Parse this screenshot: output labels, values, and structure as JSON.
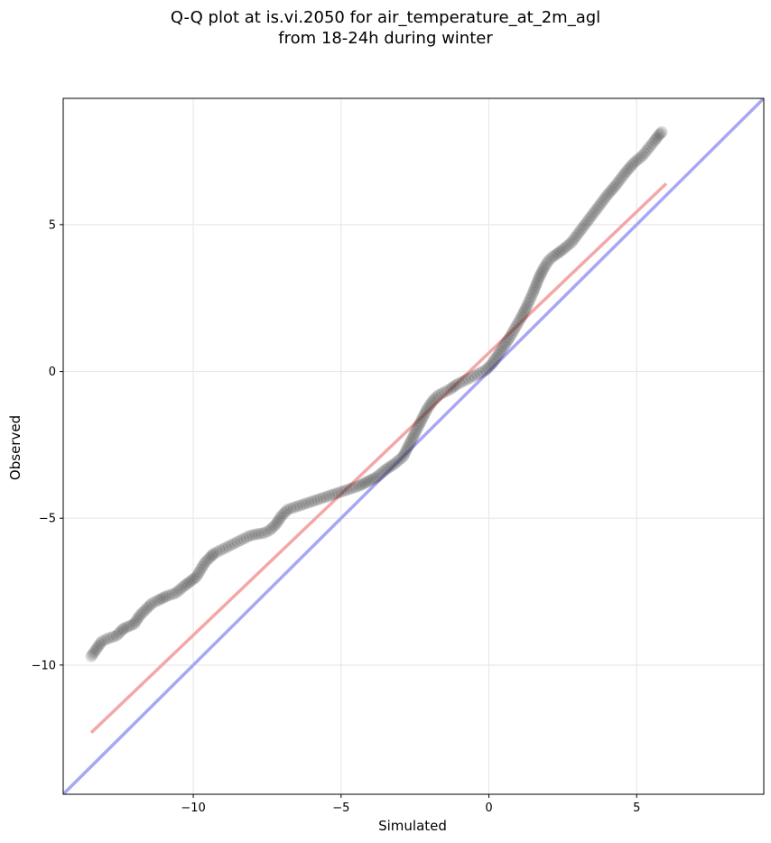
{
  "chart_data": {
    "type": "scatter",
    "title_line1": "Q-Q plot at is.vi.2050 for air_temperature_at_2m_agl",
    "title_line2": "from 18-24h during winter",
    "xlabel": "Simulated",
    "ylabel": "Observed",
    "xlim": [
      -14.4,
      9.3
    ],
    "ylim": [
      -14.4,
      9.3
    ],
    "xticks": [
      -10,
      -5,
      0,
      5
    ],
    "xtick_labels": [
      "−10",
      "−5",
      "0",
      "5"
    ],
    "yticks": [
      -10,
      -5,
      0,
      5
    ],
    "ytick_labels": [
      "−10",
      "−5",
      "0",
      "5"
    ],
    "grid": true,
    "series": [
      {
        "kind": "quantiles",
        "color": "#333333",
        "x": [
          -13.45,
          -13.1,
          -12.9,
          -12.6,
          -12.4,
          -12.35,
          -12.0,
          -11.8,
          -11.6,
          -11.4,
          -11.2,
          -10.9,
          -10.6,
          -10.3,
          -10.1,
          -9.9,
          -9.6,
          -9.4,
          -9.3,
          -9.1,
          -8.9,
          -8.7,
          -8.5,
          -8.3,
          -8.1,
          -7.9,
          -7.6,
          -7.4,
          -7.2,
          -7.0,
          -6.8,
          -6.5,
          -6.2,
          -5.9,
          -5.6,
          -5.3,
          -5.0,
          -4.7,
          -4.4,
          -4.1,
          -3.8,
          -3.5,
          -3.2,
          -2.9,
          -2.7,
          -2.5,
          -2.3,
          -2.1,
          -1.9,
          -1.7,
          -1.5,
          -1.3,
          -1.1,
          -0.9,
          -0.7,
          -0.5,
          -0.3,
          -0.1,
          0.1,
          0.3,
          0.5,
          0.7,
          0.9,
          1.1,
          1.3,
          1.5,
          1.7,
          1.85,
          2.0,
          2.15,
          2.3,
          2.5,
          2.8,
          3.1,
          3.4,
          3.7,
          4.0,
          4.3,
          4.6,
          4.9,
          5.2,
          5.4,
          5.6,
          5.75,
          5.85
        ],
        "y": [
          -9.7,
          -9.2,
          -9.1,
          -9.0,
          -8.8,
          -8.75,
          -8.6,
          -8.3,
          -8.1,
          -7.9,
          -7.8,
          -7.65,
          -7.55,
          -7.3,
          -7.15,
          -7.0,
          -6.5,
          -6.3,
          -6.2,
          -6.1,
          -6.0,
          -5.9,
          -5.8,
          -5.7,
          -5.6,
          -5.55,
          -5.5,
          -5.4,
          -5.2,
          -4.9,
          -4.7,
          -4.6,
          -4.5,
          -4.4,
          -4.3,
          -4.2,
          -4.1,
          -4.0,
          -3.9,
          -3.75,
          -3.6,
          -3.35,
          -3.15,
          -2.9,
          -2.5,
          -2.1,
          -1.7,
          -1.3,
          -1.0,
          -0.8,
          -0.7,
          -0.6,
          -0.45,
          -0.35,
          -0.25,
          -0.15,
          -0.05,
          0.05,
          0.25,
          0.55,
          0.85,
          1.15,
          1.5,
          1.85,
          2.25,
          2.7,
          3.2,
          3.5,
          3.75,
          3.9,
          4.0,
          4.15,
          4.4,
          4.8,
          5.2,
          5.6,
          6.0,
          6.35,
          6.75,
          7.1,
          7.35,
          7.6,
          7.85,
          8.05,
          8.15
        ]
      },
      {
        "kind": "fit-line",
        "color": "#f4a7a7",
        "x": [
          -13.45,
          6.0
        ],
        "y": [
          -12.3,
          6.4
        ]
      },
      {
        "kind": "identity-line",
        "color": "#a7a7f4",
        "x": [
          -14.4,
          9.3
        ],
        "y": [
          -14.4,
          9.3
        ]
      }
    ]
  }
}
